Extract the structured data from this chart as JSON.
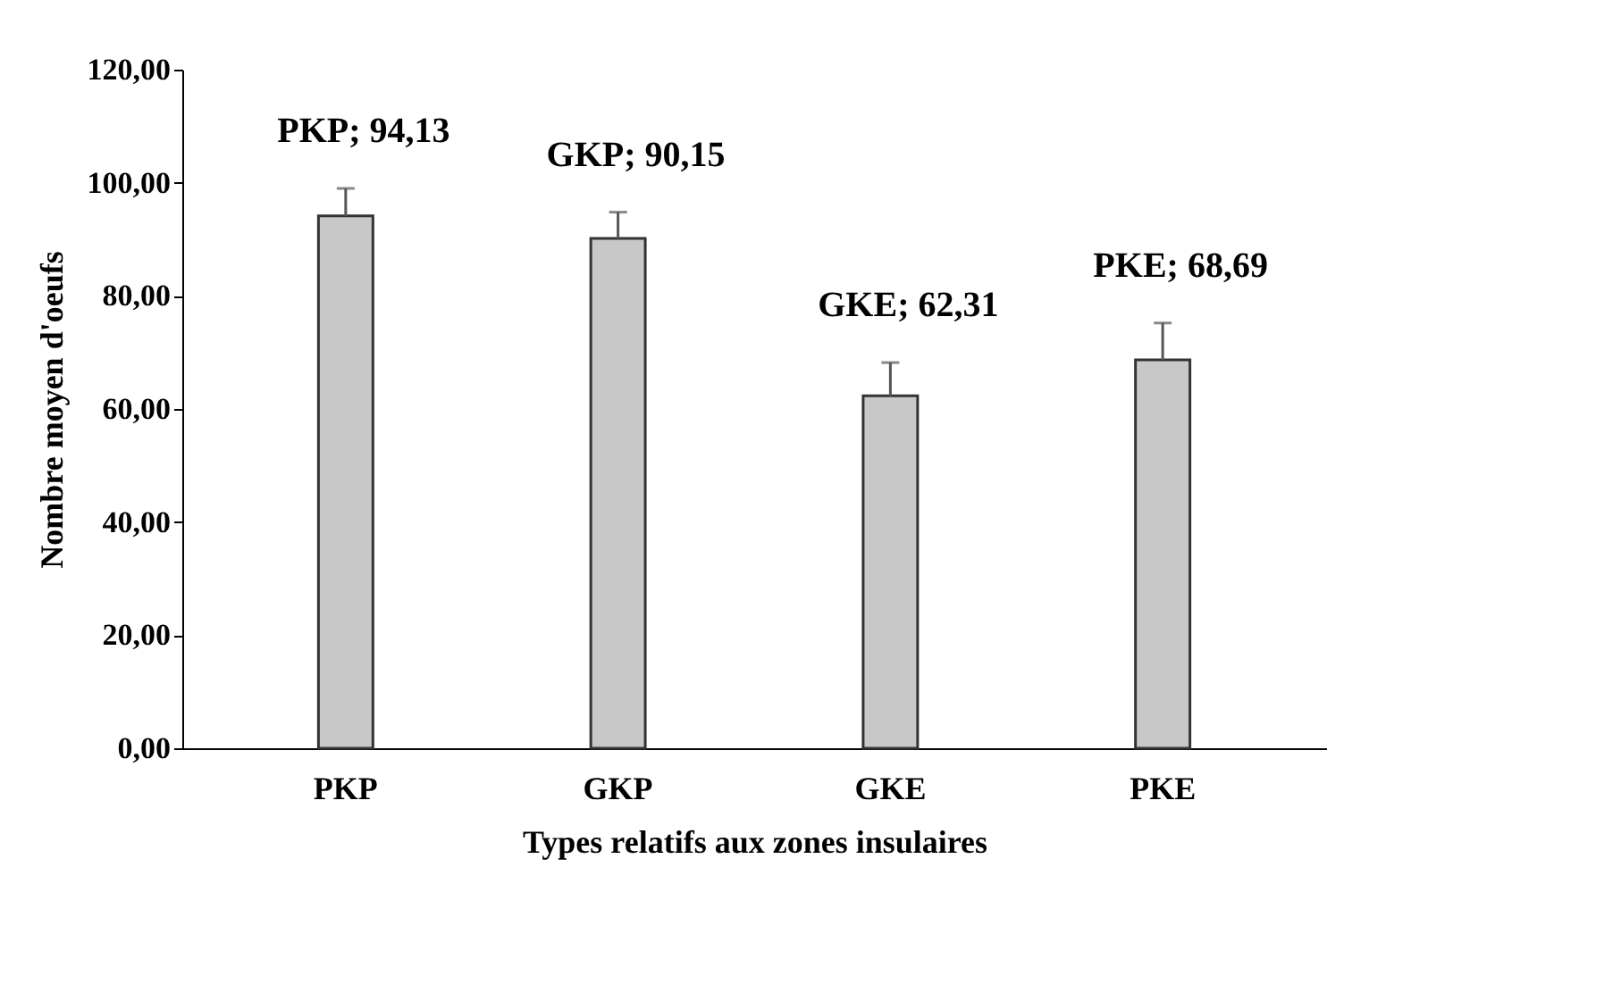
{
  "chart_data": {
    "type": "bar",
    "xlabel": "Types relatifs aux zones insulaires",
    "ylabel": "Nombre moyen d'oeufs",
    "categories": [
      "PKP",
      "GKP",
      "GKE",
      "PKE"
    ],
    "values": [
      94.13,
      90.15,
      62.31,
      68.69
    ],
    "value_labels": [
      "PKP; 94,13",
      "GKP; 90,15",
      "GKE; 62,31",
      "PKE; 68,69"
    ],
    "errors": [
      [
        94.13,
        99.0
      ],
      [
        90.15,
        94.8
      ],
      [
        62.31,
        68.2
      ],
      [
        68.69,
        75.2
      ]
    ],
    "color": "#c8c8c8",
    "ylim": [
      0,
      120
    ],
    "yticks": [
      {
        "value": 0,
        "label": "0,00"
      },
      {
        "value": 20,
        "label": "20,00"
      },
      {
        "value": 40,
        "label": "40,00"
      },
      {
        "value": 60,
        "label": "60,00"
      },
      {
        "value": 80,
        "label": "80,00"
      },
      {
        "value": 100,
        "label": "100,00"
      },
      {
        "value": 120,
        "label": "120,00"
      }
    ],
    "grid": false
  }
}
